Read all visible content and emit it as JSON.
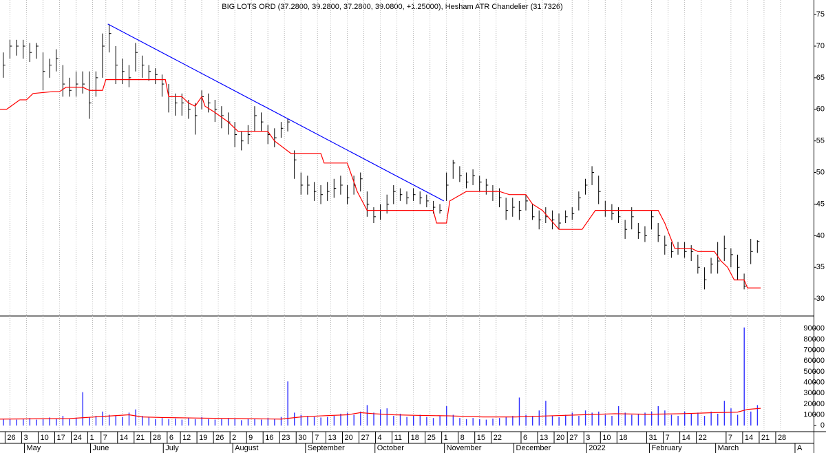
{
  "chart_data": [
    {
      "type": "ohlc",
      "title": "BIG LOTS ORD (37.2800, 39.2800, 37.2800, 39.0800, +1.25000), Hesham ATR Chandelier (31.7326)",
      "color": "#000000",
      "x": [
        0,
        2,
        4,
        6,
        8,
        10,
        12,
        14,
        16,
        18,
        20,
        22,
        24,
        26,
        28,
        30,
        32,
        34,
        36,
        38,
        40,
        42,
        44,
        46,
        48,
        50,
        52,
        54,
        56,
        58,
        60,
        62,
        64,
        66,
        68,
        70,
        72,
        74,
        76,
        78,
        80,
        82,
        84,
        86,
        88,
        90,
        92,
        94,
        96,
        98,
        100,
        102,
        104,
        106,
        108,
        110,
        112,
        114,
        116,
        118,
        120,
        122,
        124,
        126,
        128,
        130,
        132,
        134,
        136,
        138,
        140,
        142,
        144,
        146,
        148,
        150,
        152,
        154,
        156,
        158,
        160,
        162,
        164,
        166,
        168,
        170,
        172,
        174,
        176,
        178,
        180,
        182,
        184,
        186,
        188,
        190,
        192,
        194,
        196,
        198,
        200,
        202,
        204,
        206,
        208,
        210,
        212,
        214,
        216,
        218,
        220,
        222,
        224,
        226,
        228
      ],
      "high": [
        69,
        71,
        71,
        71,
        70.5,
        70.5,
        69,
        68,
        69.5,
        67,
        65,
        66,
        66,
        66,
        66,
        72,
        73.5,
        70,
        68,
        67,
        70.5,
        68.5,
        67,
        66.5,
        65.5,
        64,
        62.5,
        62.5,
        61.5,
        61,
        63,
        62.5,
        61.5,
        60.5,
        59.5,
        58,
        56.5,
        57.5,
        60.5,
        59.5,
        57.5,
        57,
        58,
        58.5,
        53.5,
        50,
        49.5,
        48.5,
        48,
        48.5,
        49,
        49.5,
        48,
        49.5,
        50,
        47,
        44.5,
        45,
        46.5,
        48,
        47.5,
        47,
        47.5,
        47,
        46.5,
        45.5,
        45,
        50,
        52,
        51,
        50,
        50.5,
        49.5,
        49,
        48,
        47.5,
        46,
        46,
        45.5,
        46.5,
        45,
        44,
        44.5,
        44,
        43.5,
        44,
        44.5,
        47,
        49,
        51,
        49.5,
        45.5,
        45,
        44.5,
        42.5,
        44.5,
        42,
        41.5,
        44,
        42,
        40,
        39,
        39,
        39,
        38.5,
        37,
        35,
        36.5,
        39,
        40,
        38,
        37,
        34,
        39.5,
        39.28
      ],
      "low": [
        65,
        68,
        68.5,
        68,
        67.5,
        68,
        63,
        65,
        66,
        62,
        62,
        62,
        62.5,
        58.5,
        62,
        65,
        69,
        64,
        64,
        63.5,
        66,
        65,
        64.5,
        64,
        62,
        59.5,
        59,
        59,
        58.5,
        56,
        60,
        59.5,
        58,
        57,
        56,
        54,
        53.5,
        54.5,
        56.5,
        56.5,
        54.5,
        54,
        55.5,
        56.5,
        49,
        46.5,
        46.5,
        45.5,
        45,
        45.5,
        46,
        46.5,
        45,
        46.5,
        47,
        43,
        42,
        42.5,
        43.5,
        45,
        45.5,
        45,
        45.5,
        45,
        44.5,
        43.5,
        43.5,
        45.5,
        49,
        48.5,
        47.5,
        48,
        47,
        46.5,
        45.5,
        44.5,
        42.5,
        43,
        42.5,
        44,
        42.5,
        41,
        42,
        41,
        41,
        42,
        42.5,
        44,
        46.5,
        48,
        45,
        43,
        42.5,
        42,
        39.5,
        41,
        39.5,
        39,
        41,
        39,
        37,
        36.5,
        37,
        36.5,
        36,
        34,
        31.5,
        34,
        34,
        36,
        35,
        33,
        31.5,
        35.5,
        37.28
      ],
      "close": [
        67,
        70,
        70,
        70,
        69,
        70,
        66,
        67,
        68,
        64,
        63,
        64,
        64,
        61,
        65,
        70,
        72,
        67,
        66,
        65,
        69,
        67,
        66,
        65.5,
        64,
        62,
        61,
        61,
        60,
        59,
        62,
        61,
        60,
        59,
        58,
        56,
        55,
        56,
        59,
        58,
        56,
        55.5,
        57,
        58,
        52,
        48,
        48,
        47,
        46.5,
        47,
        47.5,
        48,
        46,
        48,
        49,
        45,
        43,
        44,
        45,
        47,
        46.5,
        46,
        46.5,
        46,
        45.5,
        44.5,
        44,
        48,
        51.5,
        49.5,
        48.5,
        49.5,
        48.5,
        48,
        47,
        46,
        44,
        44.5,
        44,
        45.5,
        43,
        42.5,
        43,
        42.5,
        42,
        43,
        43.5,
        46,
        48,
        50,
        47,
        44,
        43.5,
        43,
        41,
        43,
        40.5,
        40,
        43,
        40,
        38.5,
        37.5,
        38,
        37.5,
        37.5,
        35,
        33,
        35.5,
        36,
        38,
        37,
        35,
        32,
        37.5,
        39.08
      ],
      "series": [
        {
          "name": "Hesham ATR Chandelier",
          "color": "#ff0000",
          "x": [
            -1,
            1,
            5,
            7,
            9,
            15,
            17,
            19,
            24,
            26,
            30,
            31,
            49,
            50,
            54,
            56,
            58,
            60,
            61,
            64,
            68,
            71,
            80,
            82,
            87,
            96,
            97,
            104,
            107,
            110,
            130,
            131,
            134,
            135,
            140,
            150,
            153,
            158,
            160,
            163,
            168,
            175,
            179,
            198,
            200,
            203,
            208,
            210,
            215,
            217,
            219,
            221,
            224,
            225,
            229
          ],
          "values": [
            60,
            60,
            61.5,
            61.5,
            62.5,
            62.8,
            62.8,
            63.5,
            63.5,
            63,
            63,
            64.7,
            64.7,
            62,
            62,
            61,
            60.5,
            62,
            60.5,
            59.5,
            58,
            56.5,
            56.5,
            55,
            53,
            53,
            51.5,
            51.5,
            47,
            44,
            44,
            42,
            42,
            45.5,
            47,
            47,
            46.5,
            46.5,
            45,
            44,
            41,
            41,
            44,
            44,
            42,
            38,
            38,
            37.5,
            37.5,
            36,
            35,
            33,
            33,
            31.73,
            31.73
          ]
        },
        {
          "type": "trendline",
          "color": "#0000ff",
          "x": [
            31.6,
            133.2
          ],
          "values": [
            73.5,
            45.5
          ]
        }
      ],
      "xlim": [
        -1,
        245
      ],
      "ylim": [
        27.4,
        77.3
      ],
      "yticks": [
        30,
        35,
        40,
        45,
        50,
        55,
        60,
        65,
        70,
        75
      ],
      "xticks": [
        {
          "value": 2,
          "label": "26"
        },
        {
          "value": 7,
          "label": "3"
        },
        {
          "value": 12,
          "label": "10"
        },
        {
          "value": 17,
          "label": "17"
        },
        {
          "value": 22,
          "label": "24"
        },
        {
          "value": 27,
          "label": "1"
        },
        {
          "value": 31,
          "label": "7"
        },
        {
          "value": 36,
          "label": "14"
        },
        {
          "value": 41,
          "label": "21"
        },
        {
          "value": 46,
          "label": "28"
        },
        {
          "value": 51,
          "label": "6"
        },
        {
          "value": 55,
          "label": "12"
        },
        {
          "value": 60,
          "label": "19"
        },
        {
          "value": 65,
          "label": "26"
        },
        {
          "value": 70,
          "label": "2"
        },
        {
          "value": 75,
          "label": "9"
        },
        {
          "value": 80,
          "label": "16"
        },
        {
          "value": 85,
          "label": "23"
        },
        {
          "value": 90,
          "label": "30"
        },
        {
          "value": 95,
          "label": "7"
        },
        {
          "value": 99,
          "label": "13"
        },
        {
          "value": 104,
          "label": "20"
        },
        {
          "value": 109,
          "label": "27"
        },
        {
          "value": 114,
          "label": "4"
        },
        {
          "value": 119,
          "label": "11"
        },
        {
          "value": 124,
          "label": "18"
        },
        {
          "value": 129,
          "label": "25"
        },
        {
          "value": 134,
          "label": "1"
        },
        {
          "value": 139,
          "label": "8"
        },
        {
          "value": 144,
          "label": "15"
        },
        {
          "value": 149,
          "label": "22"
        },
        {
          "value": 158,
          "label": "6"
        },
        {
          "value": 163,
          "label": "13"
        },
        {
          "value": 168,
          "label": "20"
        },
        {
          "value": 172,
          "label": "27"
        },
        {
          "value": 177,
          "label": "3"
        },
        {
          "value": 182,
          "label": "10"
        },
        {
          "value": 187,
          "label": "18"
        },
        {
          "value": 196,
          "label": "31"
        },
        {
          "value": 201,
          "label": "7"
        },
        {
          "value": 206,
          "label": "14"
        },
        {
          "value": 211,
          "label": "22"
        },
        {
          "value": 220,
          "label": "7"
        },
        {
          "value": 225,
          "label": "14"
        },
        {
          "value": 230,
          "label": "21"
        },
        {
          "value": 235,
          "label": "28"
        }
      ],
      "months": [
        {
          "value": 7,
          "label": "May"
        },
        {
          "value": 27,
          "label": "June"
        },
        {
          "value": 49,
          "label": "July"
        },
        {
          "value": 70,
          "label": "August"
        },
        {
          "value": 92,
          "label": "September"
        },
        {
          "value": 113,
          "label": "October"
        },
        {
          "value": 134,
          "label": "November"
        },
        {
          "value": 155,
          "label": "December"
        },
        {
          "value": 177,
          "label": "2022"
        },
        {
          "value": 196,
          "label": "February"
        },
        {
          "value": 216,
          "label": "March"
        },
        {
          "value": 240,
          "label": "A"
        }
      ]
    },
    {
      "type": "bar",
      "color": "#3030ff",
      "values": [
        6000,
        6500,
        5500,
        6000,
        7000,
        5500,
        6000,
        7500,
        6500,
        9000,
        6000,
        7000,
        31000,
        8000,
        9000,
        13000,
        10000,
        9000,
        8000,
        12000,
        15000,
        9000,
        8000,
        6000,
        7000,
        6000,
        6500,
        5500,
        7000,
        6000,
        8000,
        6000,
        5500,
        6000,
        7000,
        6000,
        5000,
        6500,
        6000,
        5500,
        7000,
        6000,
        8000,
        41000,
        12000,
        10000,
        9000,
        8000,
        7500,
        8000,
        9000,
        11000,
        12000,
        10000,
        13000,
        19000,
        12000,
        15000,
        16000,
        9000,
        11000,
        8000,
        9000,
        10000,
        8000,
        7000,
        9000,
        18000,
        10000,
        7000,
        6000,
        7000,
        6000,
        5500,
        6500,
        7000,
        8000,
        9000,
        26000,
        10000,
        9000,
        14000,
        23000,
        9000,
        8000,
        10000,
        12000,
        9000,
        14000,
        12000,
        13000,
        10000,
        9000,
        18000,
        12000,
        10000,
        11000,
        12000,
        13000,
        18000,
        14000,
        10000,
        9000,
        13000,
        11000,
        12000,
        9000,
        13000,
        11000,
        23000,
        16000,
        10000,
        91000,
        13000,
        19000
      ],
      "series": [
        {
          "name": "Volume average",
          "color": "#ff0000",
          "x": [
            -1,
            20,
            30,
            38,
            42,
            48,
            58,
            70,
            84,
            90,
            96,
            104,
            108,
            112,
            118,
            125,
            135,
            145,
            155,
            165,
            175,
            185,
            195,
            205,
            215,
            222,
            225,
            229
          ],
          "values": [
            6000,
            6500,
            8500,
            10000,
            8000,
            7500,
            7000,
            6500,
            6000,
            8000,
            9000,
            10000,
            12000,
            11000,
            10000,
            9500,
            9000,
            8000,
            8000,
            9000,
            10000,
            11000,
            10500,
            11000,
            12000,
            12500,
            15000,
            16000
          ]
        }
      ],
      "ylim": [
        -5000,
        101000
      ],
      "yticks": [
        0,
        10000,
        20000,
        30000,
        40000,
        50000,
        60000,
        70000,
        80000,
        90000
      ]
    }
  ]
}
